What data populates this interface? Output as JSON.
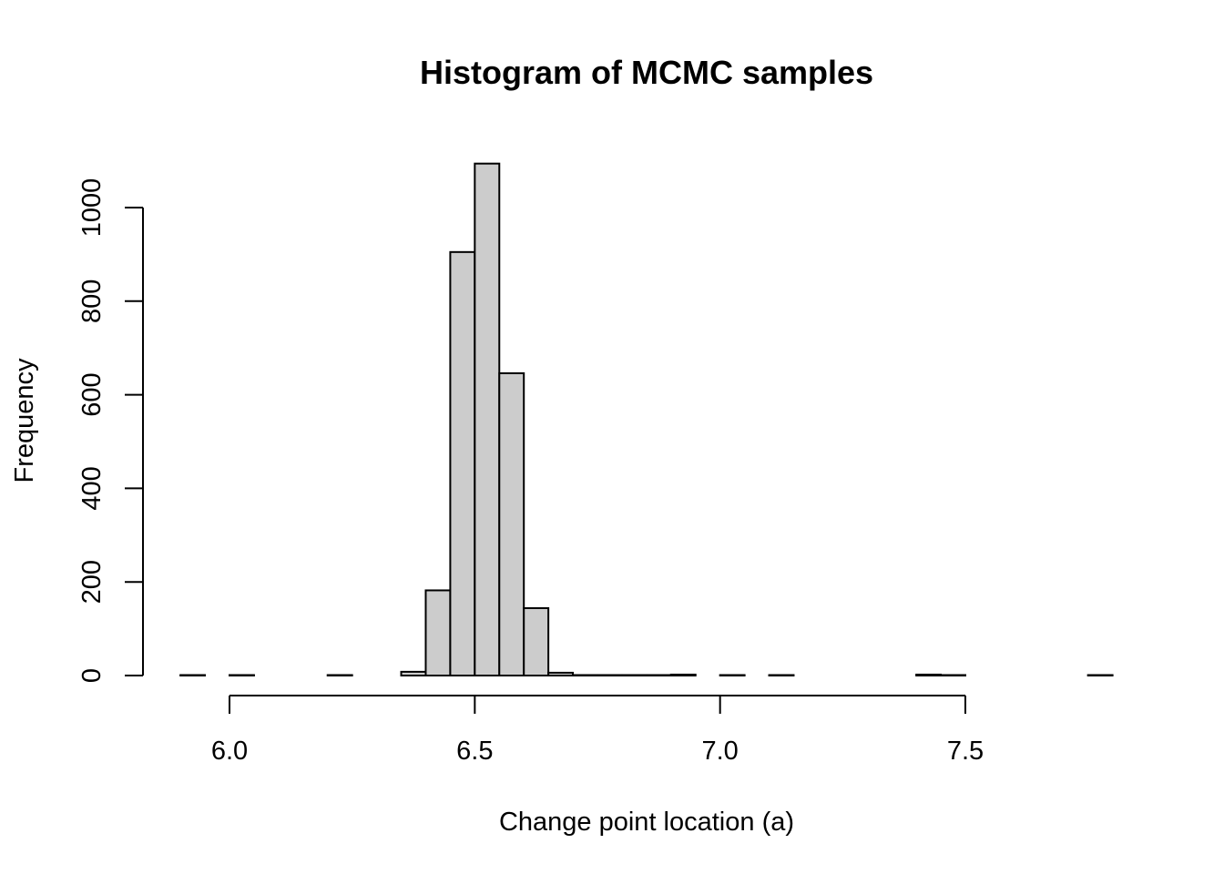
{
  "chart_data": {
    "type": "bar",
    "title": "Histogram of MCMC samples",
    "xlabel": "Change point location (a)",
    "ylabel": "Frequency",
    "xlim": [
      5.9,
      7.8
    ],
    "ylim": [
      0,
      1100
    ],
    "x_ticks": [
      6.0,
      6.5,
      7.0,
      7.5
    ],
    "x_tick_labels": [
      "6.0",
      "6.5",
      "7.0",
      "7.5"
    ],
    "y_ticks": [
      0,
      200,
      400,
      600,
      800,
      1000
    ],
    "y_tick_labels": [
      "0",
      "200",
      "400",
      "600",
      "800",
      "1000"
    ],
    "bin_width": 0.05,
    "bins": [
      {
        "start": 5.9,
        "end": 5.95,
        "count": 1
      },
      {
        "start": 5.95,
        "end": 6.0,
        "count": 0
      },
      {
        "start": 6.0,
        "end": 6.05,
        "count": 1
      },
      {
        "start": 6.05,
        "end": 6.1,
        "count": 0
      },
      {
        "start": 6.1,
        "end": 6.15,
        "count": 0
      },
      {
        "start": 6.15,
        "end": 6.2,
        "count": 0
      },
      {
        "start": 6.2,
        "end": 6.25,
        "count": 1
      },
      {
        "start": 6.25,
        "end": 6.3,
        "count": 0
      },
      {
        "start": 6.3,
        "end": 6.35,
        "count": 0
      },
      {
        "start": 6.35,
        "end": 6.4,
        "count": 8
      },
      {
        "start": 6.4,
        "end": 6.45,
        "count": 182
      },
      {
        "start": 6.45,
        "end": 6.5,
        "count": 905
      },
      {
        "start": 6.5,
        "end": 6.55,
        "count": 1094
      },
      {
        "start": 6.55,
        "end": 6.6,
        "count": 646
      },
      {
        "start": 6.6,
        "end": 6.65,
        "count": 144
      },
      {
        "start": 6.65,
        "end": 6.7,
        "count": 6
      },
      {
        "start": 6.7,
        "end": 6.75,
        "count": 1
      },
      {
        "start": 6.75,
        "end": 6.8,
        "count": 1
      },
      {
        "start": 6.8,
        "end": 6.85,
        "count": 1
      },
      {
        "start": 6.85,
        "end": 6.9,
        "count": 1
      },
      {
        "start": 6.9,
        "end": 6.95,
        "count": 2
      },
      {
        "start": 6.95,
        "end": 7.0,
        "count": 0
      },
      {
        "start": 7.0,
        "end": 7.05,
        "count": 1
      },
      {
        "start": 7.05,
        "end": 7.1,
        "count": 0
      },
      {
        "start": 7.1,
        "end": 7.15,
        "count": 1
      },
      {
        "start": 7.15,
        "end": 7.2,
        "count": 0
      },
      {
        "start": 7.2,
        "end": 7.25,
        "count": 0
      },
      {
        "start": 7.25,
        "end": 7.3,
        "count": 0
      },
      {
        "start": 7.3,
        "end": 7.35,
        "count": 0
      },
      {
        "start": 7.35,
        "end": 7.4,
        "count": 0
      },
      {
        "start": 7.4,
        "end": 7.45,
        "count": 2
      },
      {
        "start": 7.45,
        "end": 7.5,
        "count": 1
      },
      {
        "start": 7.5,
        "end": 7.55,
        "count": 0
      },
      {
        "start": 7.55,
        "end": 7.6,
        "count": 0
      },
      {
        "start": 7.6,
        "end": 7.65,
        "count": 0
      },
      {
        "start": 7.65,
        "end": 7.7,
        "count": 0
      },
      {
        "start": 7.7,
        "end": 7.75,
        "count": 0
      },
      {
        "start": 7.75,
        "end": 7.8,
        "count": 1
      }
    ],
    "bar_fill": "#cccccc",
    "bar_stroke": "#000000",
    "grid": false,
    "legend": "none"
  }
}
